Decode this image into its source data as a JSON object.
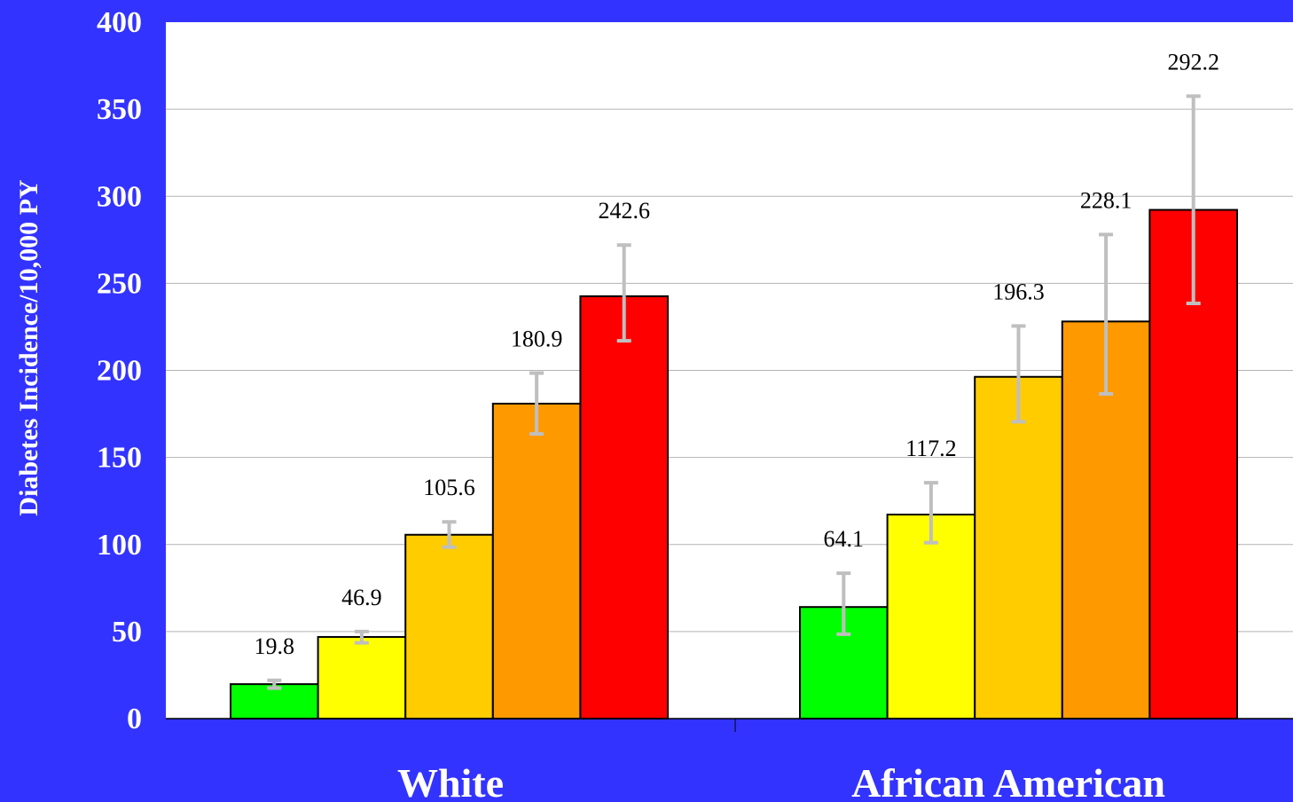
{
  "colors": {
    "background": "#3333ff",
    "plot_area": "#ffffff",
    "gridline": "#b3b3b3",
    "error_bar": "#bfbfbf",
    "axis_text": "#ffffff",
    "data_label_text": "#000000",
    "bar_colors": [
      "#00ff00",
      "#ffff00",
      "#ffcc00",
      "#ff9900",
      "#ff0000"
    ]
  },
  "chart_data": {
    "type": "bar",
    "title": "",
    "xlabel": "",
    "ylabel": "Diabetes Incidence/10,000 PY",
    "ylim": [
      0,
      400
    ],
    "yticks": [
      "0",
      "50",
      "100",
      "150",
      "200",
      "250",
      "300",
      "350",
      "400"
    ],
    "grid": true,
    "legend": "none",
    "categories": [
      "White",
      "African American"
    ],
    "groups": [
      {
        "category": "White",
        "values": [
          19.8,
          46.9,
          105.6,
          180.9,
          242.6
        ],
        "labels": [
          "19.8",
          "46.9",
          "105.6",
          "180.9",
          "242.6"
        ],
        "error_low": [
          17.5,
          43.5,
          98.5,
          163.5,
          217
        ],
        "error_high": [
          22,
          50,
          113,
          198.5,
          272
        ]
      },
      {
        "category": "African American",
        "values": [
          64.1,
          117.2,
          196.3,
          228.1,
          292.2
        ],
        "labels": [
          "64.1",
          "117.2",
          "196.3",
          "228.1",
          "292.2"
        ],
        "error_low": [
          48.5,
          101,
          170.5,
          186.5,
          238.5
        ],
        "error_high": [
          83.5,
          135.5,
          225.5,
          278,
          357.5
        ]
      }
    ]
  }
}
